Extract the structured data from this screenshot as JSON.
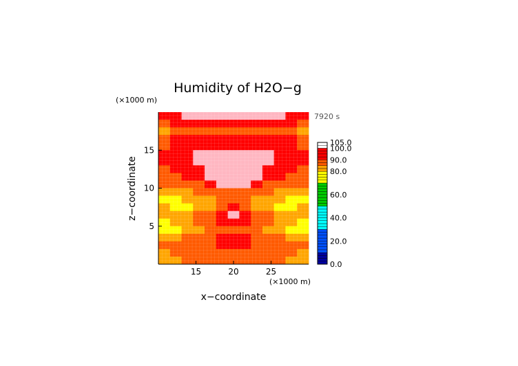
{
  "chart_data": {
    "type": "heatmap",
    "title": "Humidity of H2O−g",
    "xlabel": "x−coordinate",
    "ylabel": "z−coordinate",
    "x_unit": "(×1000 m)",
    "z_unit": "(×1000 m)",
    "time_label": "7920 s",
    "xlim": [
      10,
      30
    ],
    "ylim": [
      0,
      20
    ],
    "x_ticks": [
      15,
      20,
      25
    ],
    "y_ticks": [
      5,
      10,
      15
    ],
    "colorbar": {
      "range": [
        0,
        105
      ],
      "labels": [
        "105.0",
        "100.0",
        "90.0",
        "80.0",
        "60.0",
        "40.0",
        "20.0",
        "0.0"
      ],
      "label_values": [
        105,
        100,
        90,
        80,
        60,
        40,
        20,
        0
      ]
    },
    "field_rows_top_to_bottom": [
      {
        "z": 19.5,
        "values": [
          91,
          93,
          100,
          102,
          102,
          101,
          100,
          100,
          102,
          102,
          100,
          93,
          91
        ]
      },
      {
        "z": 18.5,
        "values": [
          85,
          90,
          94,
          96,
          97,
          96,
          96,
          96,
          97,
          96,
          94,
          90,
          85
        ]
      },
      {
        "z": 17.5,
        "values": [
          82,
          85,
          86,
          86,
          85,
          86,
          86,
          86,
          85,
          86,
          86,
          85,
          82
        ]
      },
      {
        "z": 16.5,
        "values": [
          86,
          90,
          93,
          95,
          92,
          90,
          90,
          90,
          92,
          95,
          93,
          90,
          86
        ]
      },
      {
        "z": 15.5,
        "values": [
          88,
          92,
          95,
          96,
          95,
          94,
          94,
          94,
          95,
          96,
          95,
          92,
          88
        ]
      },
      {
        "z": 14.5,
        "values": [
          93,
          96,
          98,
          100,
          101,
          101,
          101,
          101,
          101,
          100,
          98,
          96,
          93
        ]
      },
      {
        "z": 13.5,
        "values": [
          90,
          95,
          98,
          100,
          101,
          102,
          102,
          102,
          101,
          100,
          98,
          95,
          90
        ]
      },
      {
        "z": 12.5,
        "values": [
          87,
          90,
          93,
          96,
          100,
          101,
          101,
          101,
          100,
          96,
          93,
          90,
          87
        ]
      },
      {
        "z": 11.5,
        "values": [
          86,
          88,
          90,
          92,
          100,
          101,
          101,
          101,
          100,
          92,
          90,
          88,
          86
        ]
      },
      {
        "z": 10.5,
        "values": [
          85,
          86,
          87,
          88,
          92,
          101,
          101,
          101,
          92,
          88,
          87,
          86,
          85
        ]
      },
      {
        "z": 9.5,
        "values": [
          82,
          83,
          84,
          85,
          86,
          86,
          85,
          86,
          86,
          85,
          84,
          83,
          82
        ]
      },
      {
        "z": 8.5,
        "values": [
          78,
          79,
          80,
          80,
          83,
          85,
          88,
          85,
          83,
          80,
          80,
          79,
          78
        ]
      },
      {
        "z": 7.5,
        "values": [
          80,
          78,
          76,
          80,
          84,
          88,
          93,
          88,
          84,
          80,
          76,
          78,
          80
        ]
      },
      {
        "z": 6.5,
        "values": [
          82,
          83,
          84,
          85,
          86,
          94,
          101,
          94,
          86,
          85,
          84,
          83,
          82
        ]
      },
      {
        "z": 5.5,
        "values": [
          79,
          82,
          84,
          85,
          87,
          90,
          95,
          90,
          87,
          85,
          84,
          82,
          79
        ]
      },
      {
        "z": 4.5,
        "values": [
          78,
          79,
          82,
          84,
          86,
          87,
          88,
          87,
          86,
          84,
          82,
          79,
          78
        ]
      },
      {
        "z": 3.5,
        "values": [
          82,
          84,
          86,
          88,
          89,
          90,
          91,
          90,
          89,
          88,
          86,
          84,
          82
        ]
      },
      {
        "z": 2.5,
        "values": [
          85,
          86,
          87,
          88,
          89,
          90,
          92,
          90,
          89,
          88,
          87,
          86,
          85
        ]
      },
      {
        "z": 1.5,
        "values": [
          84,
          85,
          86,
          87,
          88,
          87,
          85,
          87,
          88,
          87,
          86,
          85,
          84
        ]
      },
      {
        "z": 0.5,
        "values": [
          83,
          84,
          85,
          86,
          87,
          88,
          89,
          88,
          87,
          86,
          85,
          84,
          83
        ]
      }
    ],
    "field_x_centers": [
      10.77,
      12.31,
      13.85,
      15.38,
      16.92,
      18.46,
      20.0,
      21.54,
      23.08,
      24.62,
      26.15,
      27.69,
      29.23
    ],
    "colors": {
      "sat": "#ffb6c1",
      "high": "#ff0000",
      "mid_high": "#ff5a00",
      "mid": "#ffa500",
      "low_mid": "#ffff00",
      "green": "#00cc00",
      "cyan": "#00ffff",
      "blue": "#0050ff",
      "navy": "#0000a0",
      "top_white": "#ffffff",
      "axis": "#000000",
      "time": "#555555"
    }
  }
}
